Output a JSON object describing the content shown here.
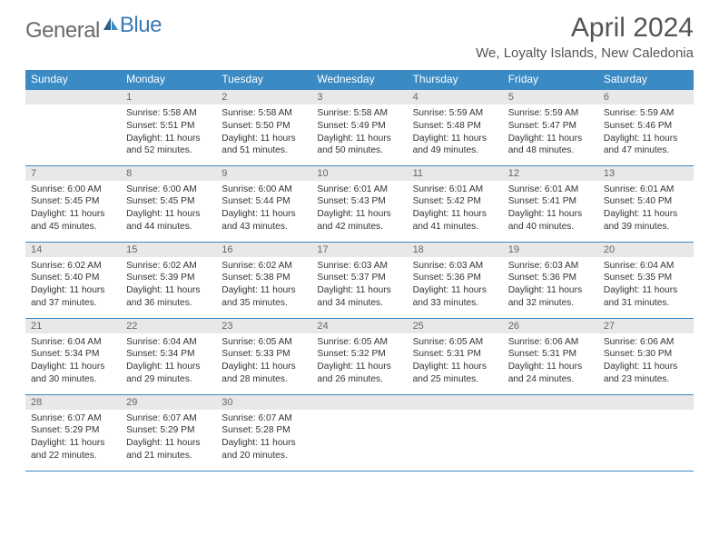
{
  "logo": {
    "word1": "General",
    "word2": "Blue"
  },
  "title": "April 2024",
  "location": "We, Loyalty Islands, New Caledonia",
  "colors": {
    "header_bg": "#3a8ac4",
    "daynum_bg": "#e8e8e8",
    "border": "#3a8ac4",
    "text": "#333333"
  },
  "columns": [
    "Sunday",
    "Monday",
    "Tuesday",
    "Wednesday",
    "Thursday",
    "Friday",
    "Saturday"
  ],
  "weeks": [
    [
      {
        "blank": true
      },
      {
        "n": "1",
        "sr": "Sunrise: 5:58 AM",
        "ss": "Sunset: 5:51 PM",
        "dl": "Daylight: 11 hours and 52 minutes."
      },
      {
        "n": "2",
        "sr": "Sunrise: 5:58 AM",
        "ss": "Sunset: 5:50 PM",
        "dl": "Daylight: 11 hours and 51 minutes."
      },
      {
        "n": "3",
        "sr": "Sunrise: 5:58 AM",
        "ss": "Sunset: 5:49 PM",
        "dl": "Daylight: 11 hours and 50 minutes."
      },
      {
        "n": "4",
        "sr": "Sunrise: 5:59 AM",
        "ss": "Sunset: 5:48 PM",
        "dl": "Daylight: 11 hours and 49 minutes."
      },
      {
        "n": "5",
        "sr": "Sunrise: 5:59 AM",
        "ss": "Sunset: 5:47 PM",
        "dl": "Daylight: 11 hours and 48 minutes."
      },
      {
        "n": "6",
        "sr": "Sunrise: 5:59 AM",
        "ss": "Sunset: 5:46 PM",
        "dl": "Daylight: 11 hours and 47 minutes."
      }
    ],
    [
      {
        "n": "7",
        "sr": "Sunrise: 6:00 AM",
        "ss": "Sunset: 5:45 PM",
        "dl": "Daylight: 11 hours and 45 minutes."
      },
      {
        "n": "8",
        "sr": "Sunrise: 6:00 AM",
        "ss": "Sunset: 5:45 PM",
        "dl": "Daylight: 11 hours and 44 minutes."
      },
      {
        "n": "9",
        "sr": "Sunrise: 6:00 AM",
        "ss": "Sunset: 5:44 PM",
        "dl": "Daylight: 11 hours and 43 minutes."
      },
      {
        "n": "10",
        "sr": "Sunrise: 6:01 AM",
        "ss": "Sunset: 5:43 PM",
        "dl": "Daylight: 11 hours and 42 minutes."
      },
      {
        "n": "11",
        "sr": "Sunrise: 6:01 AM",
        "ss": "Sunset: 5:42 PM",
        "dl": "Daylight: 11 hours and 41 minutes."
      },
      {
        "n": "12",
        "sr": "Sunrise: 6:01 AM",
        "ss": "Sunset: 5:41 PM",
        "dl": "Daylight: 11 hours and 40 minutes."
      },
      {
        "n": "13",
        "sr": "Sunrise: 6:01 AM",
        "ss": "Sunset: 5:40 PM",
        "dl": "Daylight: 11 hours and 39 minutes."
      }
    ],
    [
      {
        "n": "14",
        "sr": "Sunrise: 6:02 AM",
        "ss": "Sunset: 5:40 PM",
        "dl": "Daylight: 11 hours and 37 minutes."
      },
      {
        "n": "15",
        "sr": "Sunrise: 6:02 AM",
        "ss": "Sunset: 5:39 PM",
        "dl": "Daylight: 11 hours and 36 minutes."
      },
      {
        "n": "16",
        "sr": "Sunrise: 6:02 AM",
        "ss": "Sunset: 5:38 PM",
        "dl": "Daylight: 11 hours and 35 minutes."
      },
      {
        "n": "17",
        "sr": "Sunrise: 6:03 AM",
        "ss": "Sunset: 5:37 PM",
        "dl": "Daylight: 11 hours and 34 minutes."
      },
      {
        "n": "18",
        "sr": "Sunrise: 6:03 AM",
        "ss": "Sunset: 5:36 PM",
        "dl": "Daylight: 11 hours and 33 minutes."
      },
      {
        "n": "19",
        "sr": "Sunrise: 6:03 AM",
        "ss": "Sunset: 5:36 PM",
        "dl": "Daylight: 11 hours and 32 minutes."
      },
      {
        "n": "20",
        "sr": "Sunrise: 6:04 AM",
        "ss": "Sunset: 5:35 PM",
        "dl": "Daylight: 11 hours and 31 minutes."
      }
    ],
    [
      {
        "n": "21",
        "sr": "Sunrise: 6:04 AM",
        "ss": "Sunset: 5:34 PM",
        "dl": "Daylight: 11 hours and 30 minutes."
      },
      {
        "n": "22",
        "sr": "Sunrise: 6:04 AM",
        "ss": "Sunset: 5:34 PM",
        "dl": "Daylight: 11 hours and 29 minutes."
      },
      {
        "n": "23",
        "sr": "Sunrise: 6:05 AM",
        "ss": "Sunset: 5:33 PM",
        "dl": "Daylight: 11 hours and 28 minutes."
      },
      {
        "n": "24",
        "sr": "Sunrise: 6:05 AM",
        "ss": "Sunset: 5:32 PM",
        "dl": "Daylight: 11 hours and 26 minutes."
      },
      {
        "n": "25",
        "sr": "Sunrise: 6:05 AM",
        "ss": "Sunset: 5:31 PM",
        "dl": "Daylight: 11 hours and 25 minutes."
      },
      {
        "n": "26",
        "sr": "Sunrise: 6:06 AM",
        "ss": "Sunset: 5:31 PM",
        "dl": "Daylight: 11 hours and 24 minutes."
      },
      {
        "n": "27",
        "sr": "Sunrise: 6:06 AM",
        "ss": "Sunset: 5:30 PM",
        "dl": "Daylight: 11 hours and 23 minutes."
      }
    ],
    [
      {
        "n": "28",
        "sr": "Sunrise: 6:07 AM",
        "ss": "Sunset: 5:29 PM",
        "dl": "Daylight: 11 hours and 22 minutes."
      },
      {
        "n": "29",
        "sr": "Sunrise: 6:07 AM",
        "ss": "Sunset: 5:29 PM",
        "dl": "Daylight: 11 hours and 21 minutes."
      },
      {
        "n": "30",
        "sr": "Sunrise: 6:07 AM",
        "ss": "Sunset: 5:28 PM",
        "dl": "Daylight: 11 hours and 20 minutes."
      },
      {
        "blank": true
      },
      {
        "blank": true
      },
      {
        "blank": true
      },
      {
        "blank": true
      }
    ]
  ]
}
